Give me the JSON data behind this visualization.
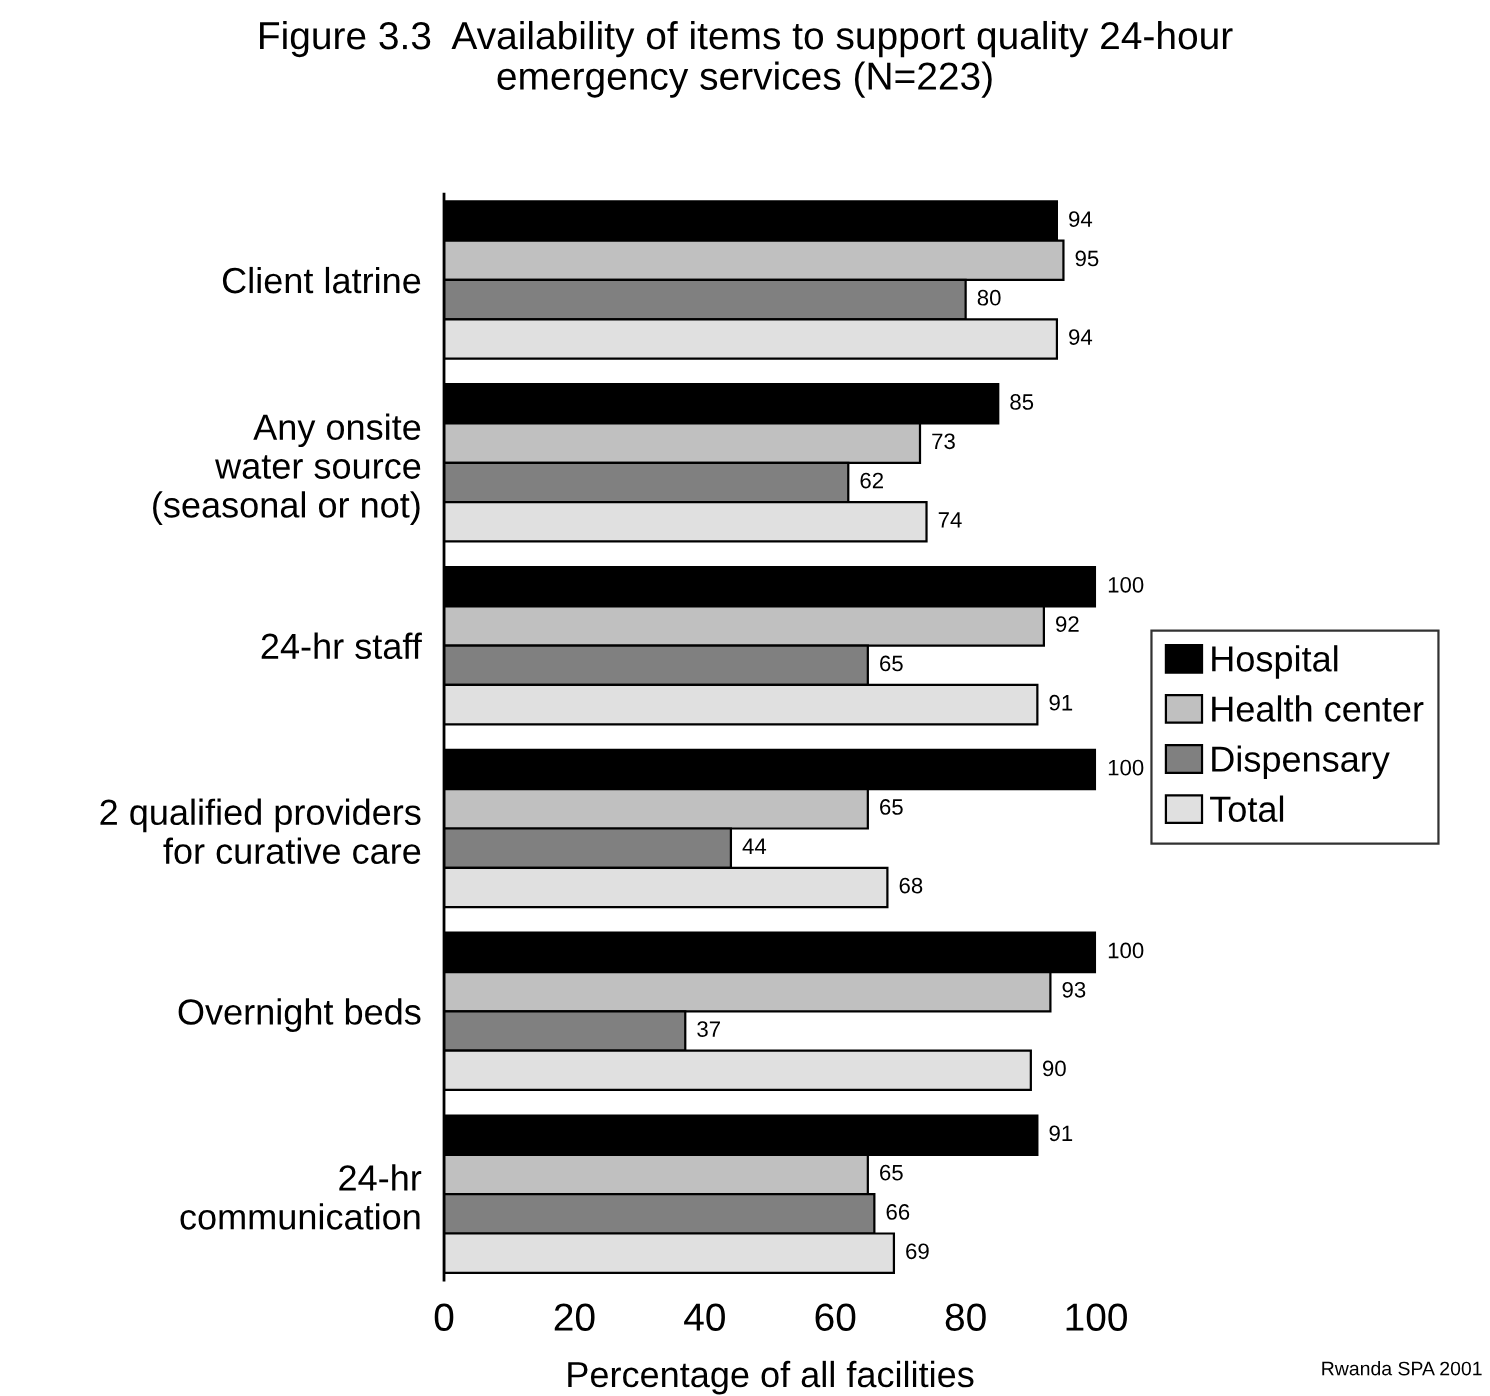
{
  "chart_data": {
    "type": "bar",
    "orientation": "horizontal",
    "title": "Figure 3.3  Availability of items to support quality 24-hour\nemergency services (N=223)",
    "xlabel": "Percentage of all facilities",
    "categories": [
      "Client latrine",
      "Any onsite\nwater source\n(seasonal or not)",
      "24-hr staff",
      "2 qualified providers\nfor curative care",
      "Overnight beds",
      "24-hr\ncommunication"
    ],
    "series": [
      {
        "name": "Hospital",
        "color": "#000000",
        "values": [
          94,
          85,
          100,
          100,
          100,
          91
        ]
      },
      {
        "name": "Health center",
        "color": "#c0c0c0",
        "values": [
          95,
          73,
          92,
          65,
          93,
          65
        ]
      },
      {
        "name": "Dispensary",
        "color": "#808080",
        "values": [
          80,
          62,
          65,
          44,
          37,
          66
        ]
      },
      {
        "name": "Total",
        "color": "#e0e0e0",
        "values": [
          94,
          74,
          91,
          68,
          90,
          69
        ]
      }
    ],
    "xlim": [
      0,
      100
    ],
    "xticks": [
      0,
      20,
      40,
      60,
      80,
      100
    ],
    "data_labels": true,
    "legend": "right",
    "grid": false,
    "annotations": [
      "Rwanda SPA 2001"
    ]
  }
}
